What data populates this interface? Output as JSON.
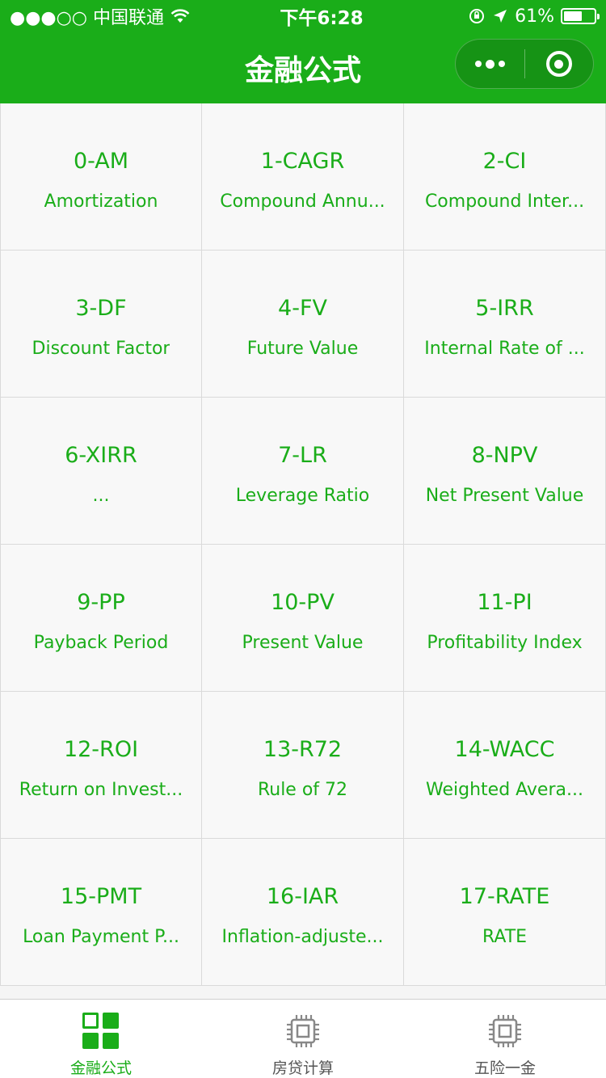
{
  "status_bar": {
    "carrier": "●●●○○ 中国联通",
    "time": "下午6:28",
    "battery": "61%",
    "battery_level": 0.61
  },
  "nav": {
    "title": "金融公式"
  },
  "formulas": [
    {
      "code": "0-AM",
      "name": "Amortization"
    },
    {
      "code": "1-CAGR",
      "name": "Compound Annu..."
    },
    {
      "code": "2-CI",
      "name": "Compound Inter..."
    },
    {
      "code": "3-DF",
      "name": "Discount Factor"
    },
    {
      "code": "4-FV",
      "name": "Future Value"
    },
    {
      "code": "5-IRR",
      "name": "Internal Rate of ..."
    },
    {
      "code": "6-XIRR",
      "name": "..."
    },
    {
      "code": "7-LR",
      "name": "Leverage Ratio"
    },
    {
      "code": "8-NPV",
      "name": "Net Present Value"
    },
    {
      "code": "9-PP",
      "name": "Payback Period"
    },
    {
      "code": "10-PV",
      "name": "Present Value"
    },
    {
      "code": "11-PI",
      "name": "Profitability Index"
    },
    {
      "code": "12-ROI",
      "name": "Return on Invest..."
    },
    {
      "code": "13-R72",
      "name": "Rule of 72"
    },
    {
      "code": "14-WACC",
      "name": "Weighted Avera..."
    },
    {
      "code": "15-PMT",
      "name": "Loan Payment P..."
    },
    {
      "code": "16-IAR",
      "name": "Inflation-adjuste..."
    },
    {
      "code": "17-RATE",
      "name": "RATE"
    }
  ],
  "tabbar": {
    "tabs": [
      {
        "label": "金融公式",
        "icon": "grid-icon",
        "active": true
      },
      {
        "label": "房贷计算",
        "icon": "chip-icon",
        "active": false
      },
      {
        "label": "五险一金",
        "icon": "chip-icon",
        "active": false
      }
    ]
  },
  "colors": {
    "accent": "#1aad19",
    "cell_bg": "#f8f8f8",
    "divider": "#dadada"
  }
}
